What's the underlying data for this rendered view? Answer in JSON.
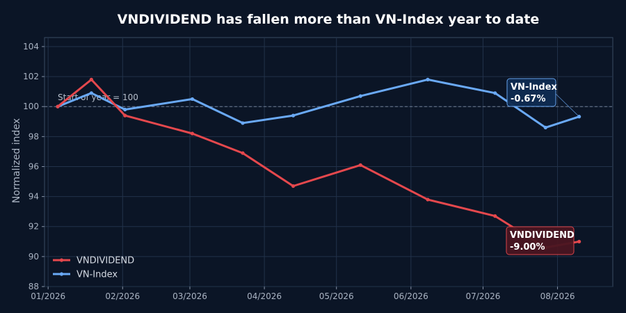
{
  "chart_data": {
    "type": "line",
    "title": "VNDIVIDEND has fallen more than VN-Index year to date",
    "xlabel": "",
    "ylabel": "Normalized index",
    "ylim": [
      88,
      104.6
    ],
    "yticks": [
      88,
      90,
      92,
      94,
      96,
      98,
      100,
      102,
      104
    ],
    "xticks": [
      "2026-01-01",
      "2026-02-01",
      "2026-03-01",
      "2026-04-01",
      "2026-05-01",
      "2026-06-01",
      "2026-07-01",
      "2026-08-01"
    ],
    "xtick_labels": [
      "01/2026",
      "02/2026",
      "03/2026",
      "04/2026",
      "05/2026",
      "06/2026",
      "07/2026",
      "08/2026"
    ],
    "grid": true,
    "legend_position": "bottom-left",
    "reference_line": {
      "y": 100,
      "label": "Start of year = 100"
    },
    "series": [
      {
        "name": "VNDIVIDEND",
        "color": "#e5484d",
        "x": [
          "2026-01-05",
          "2026-01-19",
          "2026-02-02",
          "2026-03-02",
          "2026-03-23",
          "2026-04-13",
          "2026-05-11",
          "2026-06-08",
          "2026-07-06",
          "2026-07-27",
          "2026-08-10"
        ],
        "values": [
          100.0,
          101.8,
          99.4,
          98.2,
          96.9,
          94.7,
          96.1,
          93.8,
          92.7,
          90.6,
          91.0
        ],
        "end_label": {
          "name": "VNDIVIDEND",
          "change": "-9.00%"
        }
      },
      {
        "name": "VN-Index",
        "color": "#6aa9f5",
        "x": [
          "2026-01-05",
          "2026-01-19",
          "2026-02-02",
          "2026-03-02",
          "2026-03-23",
          "2026-04-13",
          "2026-05-11",
          "2026-06-08",
          "2026-07-06",
          "2026-07-27",
          "2026-08-10"
        ],
        "values": [
          100.0,
          100.9,
          99.8,
          100.5,
          98.9,
          99.4,
          100.7,
          101.8,
          100.9,
          98.6,
          99.33
        ],
        "end_label": {
          "name": "VN-Index",
          "change": "-0.67%"
        }
      }
    ]
  }
}
